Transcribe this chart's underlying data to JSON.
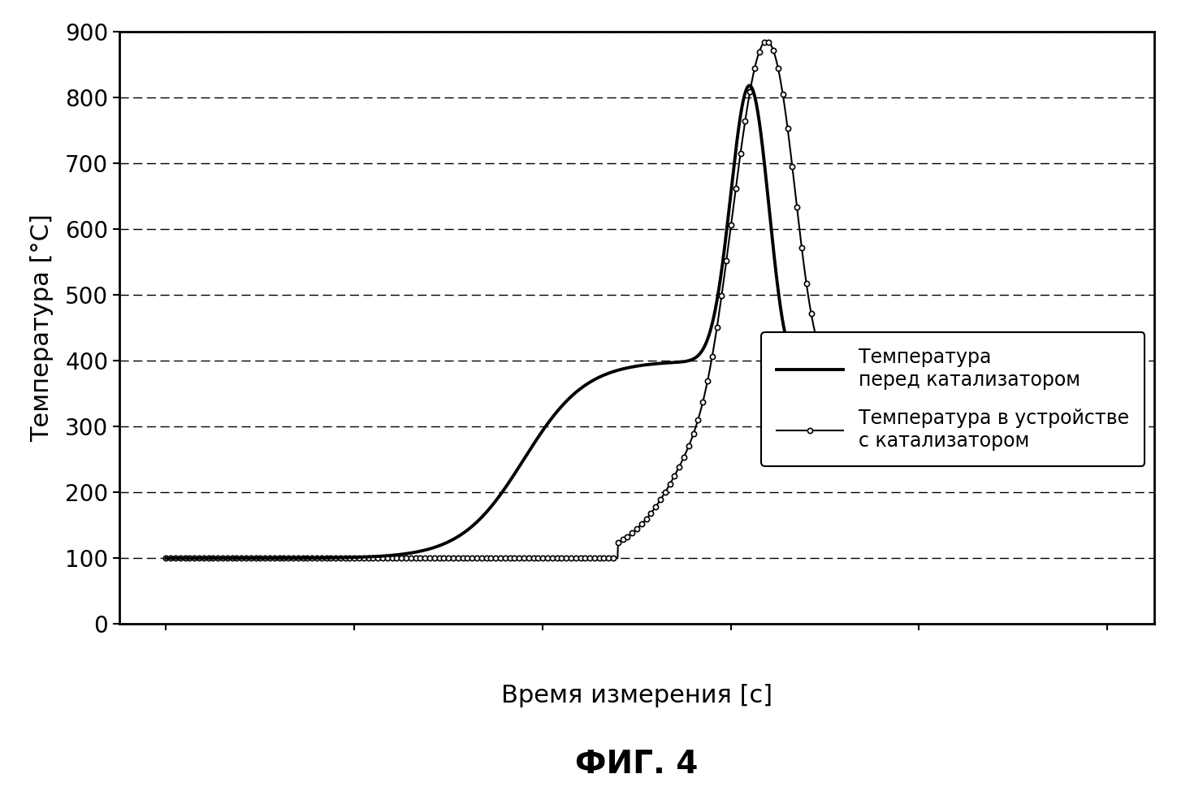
{
  "title": "ФИГ. 4",
  "xlabel": "Время измерения [с]",
  "ylabel": "Температура [°C]",
  "ylim": [
    0,
    900
  ],
  "yticks": [
    0,
    100,
    200,
    300,
    400,
    500,
    600,
    700,
    800,
    900
  ],
  "legend_line1": "Температура\nперед катализатором",
  "legend_line2": "Температура в устройстве\nс катализатором",
  "background_color": "#ffffff",
  "line_color": "#000000",
  "title_fontsize": 28,
  "label_fontsize": 22,
  "tick_fontsize": 20,
  "legend_fontsize": 17
}
